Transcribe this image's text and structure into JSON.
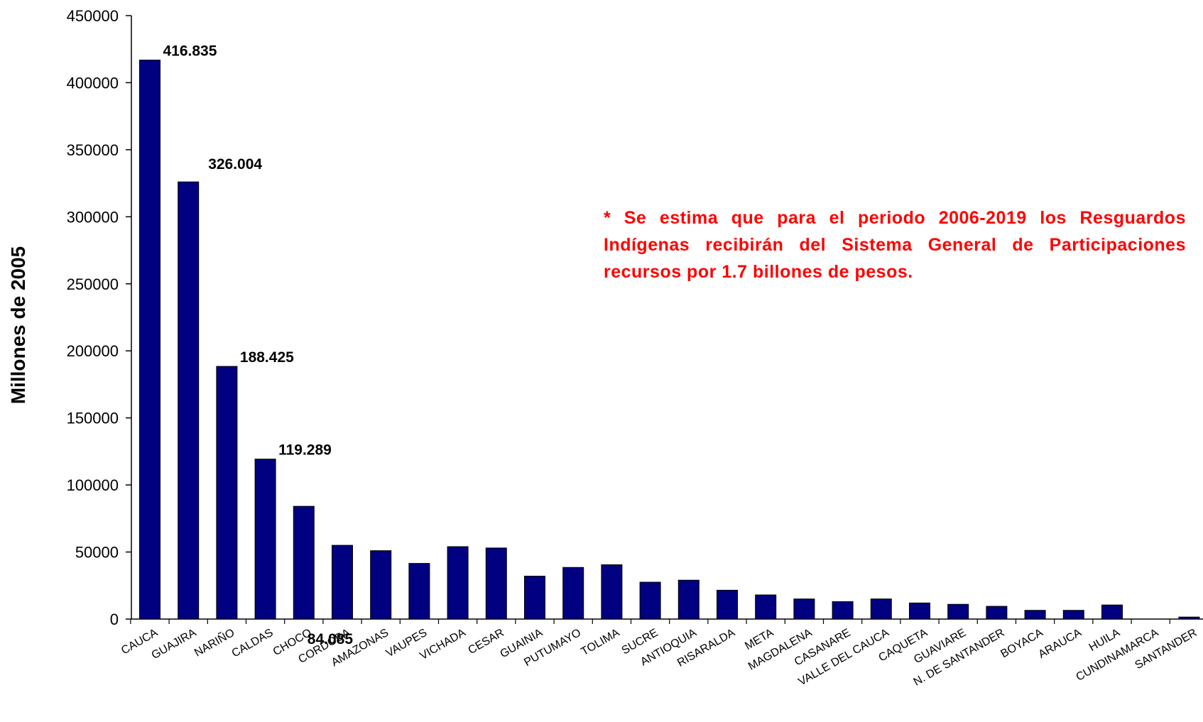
{
  "chart_data": {
    "type": "bar",
    "title": "",
    "xlabel": "",
    "ylabel": "Millones de 2005",
    "ylim": [
      0,
      450000
    ],
    "yticks": [
      0,
      50000,
      100000,
      150000,
      200000,
      250000,
      300000,
      350000,
      400000,
      450000
    ],
    "grid": false,
    "bar_color": "#000080",
    "categories": [
      "CAUCA",
      "GUAJIRA",
      "NARIÑO",
      "CALDAS",
      "CHOCO",
      "CORDOBA",
      "AMAZONAS",
      "VAUPES",
      "VICHADA",
      "CESAR",
      "GUAINIA",
      "PUTUMAYO",
      "TOLIMA",
      "SUCRE",
      "ANTIOQUIA",
      "RISARALDA",
      "META",
      "MAGDALENA",
      "CASANARE",
      "VALLE DEL CAUCA",
      "CAQUETA",
      "GUAVIARE",
      "N. DE SANTANDER",
      "BOYACA",
      "ARAUCA",
      "HUILA",
      "CUNDINAMARCA",
      "SANTANDER"
    ],
    "values": [
      416835,
      326004,
      188425,
      119289,
      84085,
      55000,
      51000,
      41500,
      54000,
      53000,
      32000,
      38500,
      40500,
      27500,
      29000,
      21500,
      18000,
      15000,
      13000,
      15000,
      12000,
      11000,
      9500,
      6500,
      6500,
      10500,
      0,
      1500
    ],
    "data_labels": [
      "416.835",
      "326.004",
      "188.425",
      "119.289",
      "84.085",
      "",
      "",
      "",
      "",
      "",
      "",
      "",
      "",
      "",
      "",
      "",
      "",
      "",
      "",
      "",
      "",
      "",
      "",
      "",
      "",
      "",
      "",
      ""
    ],
    "annotation": "* Se estima que para el periodo 2006-2019 los Resguardos Indígenas recibirán del Sistema General de Participaciones recursos por 1.7  billones de pesos.",
    "annotation_color": "#ff0000"
  }
}
